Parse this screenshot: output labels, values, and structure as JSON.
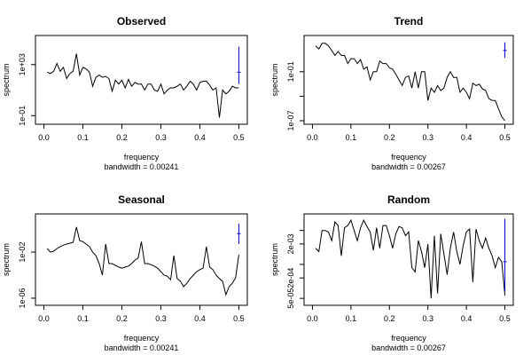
{
  "figure": {
    "background": "#ffffff"
  },
  "colors": {
    "line": "#000000",
    "ci_bar": "#0000cc",
    "axis": "#000000"
  },
  "chart_data": [
    {
      "type": "line",
      "title": "Observed",
      "xlabel": "frequency",
      "sublabel": "bandwidth = 0.00241",
      "ylabel": "spectrum",
      "log_y": true,
      "xlim": [
        0,
        0.5
      ],
      "ylim": [
        0.04,
        100000
      ],
      "x_ticks": [
        0.0,
        0.1,
        0.2,
        0.3,
        0.4,
        0.5
      ],
      "x_tick_labels": [
        "0.0",
        "0.1",
        "0.2",
        "0.3",
        "0.4",
        "0.5"
      ],
      "y_ticks": [
        0.1,
        1000
      ],
      "y_tick_labels": [
        "1e-01",
        "1e+03"
      ],
      "ci": {
        "x": 0.5,
        "center": 250,
        "low": 30,
        "high": 25000
      },
      "series": [
        {
          "x": [
            0.0083,
            0.0167,
            0.025,
            0.0333,
            0.0417,
            0.05,
            0.0583,
            0.0667,
            0.075,
            0.0833,
            0.0917,
            0.1,
            0.1083,
            0.1167,
            0.125,
            0.1333,
            0.1417,
            0.15,
            0.1583,
            0.1667,
            0.175,
            0.1833,
            0.1917,
            0.2,
            0.2083,
            0.2167,
            0.225,
            0.2333,
            0.2417,
            0.25,
            0.2583,
            0.2667,
            0.275,
            0.2833,
            0.2917,
            0.3,
            0.3083,
            0.3167,
            0.325,
            0.3333,
            0.3417,
            0.35,
            0.3583,
            0.3667,
            0.375,
            0.3833,
            0.3917,
            0.4,
            0.4083,
            0.4167,
            0.425,
            0.4333,
            0.4417,
            0.45,
            0.4583,
            0.4667,
            0.475,
            0.4833,
            0.4917,
            0.5
          ],
          "y": [
            250,
            200,
            300,
            1200,
            300,
            600,
            80,
            200,
            300,
            7000,
            150,
            600,
            450,
            250,
            20,
            100,
            150,
            100,
            120,
            80,
            8,
            60,
            30,
            60,
            15,
            70,
            20,
            40,
            30,
            30,
            10,
            30,
            30,
            10,
            8,
            30,
            5,
            10,
            15,
            15,
            20,
            30,
            10,
            20,
            50,
            30,
            10,
            40,
            50,
            50,
            25,
            10,
            15,
            0.07,
            10,
            5,
            8,
            20,
            15,
            15
          ]
        }
      ]
    },
    {
      "type": "line",
      "title": "Trend",
      "xlabel": "frequency",
      "sublabel": "bandwidth = 0.00267",
      "ylabel": "spectrum",
      "log_y": true,
      "xlim": [
        0,
        0.5
      ],
      "ylim": [
        1e-07,
        1000
      ],
      "x_ticks": [
        0.0,
        0.1,
        0.2,
        0.3,
        0.4,
        0.5
      ],
      "x_tick_labels": [
        "0.0",
        "0.1",
        "0.2",
        "0.3",
        "0.4",
        "0.5"
      ],
      "y_ticks": [
        1e-07,
        0.0001,
        0.1
      ],
      "y_tick_labels": [
        "1e-07",
        "",
        "1e-01"
      ],
      "ci": {
        "x": 0.5,
        "center": 40,
        "low": 5,
        "high": 400
      },
      "series": [
        {
          "x": [
            0.0083,
            0.0167,
            0.025,
            0.0333,
            0.0417,
            0.05,
            0.0583,
            0.0667,
            0.075,
            0.0833,
            0.0917,
            0.1,
            0.1083,
            0.1167,
            0.125,
            0.1333,
            0.1417,
            0.15,
            0.1583,
            0.1667,
            0.175,
            0.1833,
            0.1917,
            0.2,
            0.2083,
            0.2167,
            0.225,
            0.2333,
            0.2417,
            0.25,
            0.2583,
            0.2667,
            0.275,
            0.2833,
            0.2917,
            0.3,
            0.3083,
            0.3167,
            0.325,
            0.3333,
            0.3417,
            0.35,
            0.3583,
            0.3667,
            0.375,
            0.3833,
            0.3917,
            0.4,
            0.4083,
            0.4167,
            0.425,
            0.4333,
            0.4417,
            0.45,
            0.4583,
            0.4667,
            0.475,
            0.4833,
            0.4917,
            0.5
          ],
          "y": [
            150,
            60,
            300,
            300,
            150,
            40,
            10,
            30,
            10,
            10,
            1,
            4,
            4,
            1,
            3,
            0.2,
            0.4,
            0.01,
            0.1,
            0.1,
            2,
            1,
            1,
            0.3,
            0.2,
            0.05,
            0.01,
            0.002,
            0.02,
            0.03,
            0.001,
            0.1,
            0.001,
            0.1,
            0.1,
            3e-05,
            0.001,
            0.0003,
            0.002,
            0.0005,
            0.001,
            0.02,
            0.1,
            0.02,
            0.02,
            0.0003,
            0.001,
            0.0003,
            5e-05,
            0.004,
            0.002,
            0.003,
            0.0008,
            0.0005,
            5e-05,
            3e-05,
            3e-05,
            3e-06,
            3e-07,
            5e-08
          ]
        }
      ]
    },
    {
      "type": "line",
      "title": "Seasonal",
      "xlabel": "frequency",
      "sublabel": "bandwidth = 0.00241",
      "ylabel": "spectrum",
      "log_y": true,
      "xlim": [
        0,
        0.5
      ],
      "ylim": [
        5e-07,
        10
      ],
      "x_ticks": [
        0.0,
        0.1,
        0.2,
        0.3,
        0.4,
        0.5
      ],
      "x_tick_labels": [
        "0.0",
        "0.1",
        "0.2",
        "0.3",
        "0.4",
        "0.5"
      ],
      "y_ticks": [
        1e-06,
        0.01
      ],
      "y_tick_labels": [
        "1e-06",
        "1e-02"
      ],
      "ci": {
        "x": 0.5,
        "center": 0.4,
        "low": 0.05,
        "high": 3
      },
      "series": [
        {
          "x": [
            0.0083,
            0.0167,
            0.025,
            0.0333,
            0.0417,
            0.05,
            0.0583,
            0.0667,
            0.075,
            0.0833,
            0.0917,
            0.1,
            0.1083,
            0.1167,
            0.125,
            0.1333,
            0.1417,
            0.15,
            0.1583,
            0.1667,
            0.175,
            0.1833,
            0.1917,
            0.2,
            0.2083,
            0.2167,
            0.225,
            0.2333,
            0.2417,
            0.25,
            0.2583,
            0.2667,
            0.275,
            0.2833,
            0.2917,
            0.3,
            0.3083,
            0.3167,
            0.325,
            0.3333,
            0.3417,
            0.35,
            0.3583,
            0.3667,
            0.375,
            0.3833,
            0.3917,
            0.4,
            0.4083,
            0.4167,
            0.425,
            0.4333,
            0.4417,
            0.45,
            0.4583,
            0.4667,
            0.475,
            0.4833,
            0.4917,
            0.5
          ],
          "y": [
            0.02,
            0.01,
            0.012,
            0.02,
            0.03,
            0.04,
            0.05,
            0.06,
            0.07,
            1.5,
            0.1,
            0.08,
            0.05,
            0.03,
            0.01,
            0.005,
            0.001,
            0.0001,
            0.05,
            0.001,
            0.001,
            0.0007,
            0.0005,
            0.0004,
            0.0005,
            0.0006,
            0.001,
            0.002,
            0.003,
            0.08,
            0.001,
            0.001,
            0.0008,
            0.0006,
            0.0004,
            0.0002,
            0.0001,
            8e-05,
            4e-05,
            0.005,
            5e-05,
            3e-05,
            1e-05,
            2e-05,
            5e-05,
            0.0001,
            0.0002,
            0.0003,
            0.0004,
            0.03,
            0.0005,
            0.0003,
            0.0001,
            5e-05,
            3e-05,
            2e-06,
            1e-05,
            2e-05,
            6e-05,
            0.006
          ]
        }
      ]
    },
    {
      "type": "line",
      "title": "Random",
      "xlabel": "frequency",
      "sublabel": "bandwidth = 0.00267",
      "ylabel": "spectrum",
      "log_y": true,
      "xlim": [
        0,
        0.5
      ],
      "ylim": [
        4e-05,
        0.012
      ],
      "x_ticks": [
        0.0,
        0.1,
        0.2,
        0.3,
        0.4,
        0.5
      ],
      "x_tick_labels": [
        "0.0",
        "0.1",
        "0.2",
        "0.3",
        "0.4",
        "0.5"
      ],
      "y_ticks": [
        5e-05,
        0.0002,
        0.0005,
        0.002,
        0.005
      ],
      "y_tick_labels": [
        "5e-05",
        "2e-04",
        "",
        "2e-03",
        ""
      ],
      "ci": {
        "x": 0.5,
        "center": 0.0006,
        "low": 8e-05,
        "high": 0.011
      },
      "series": [
        {
          "x": [
            0.0083,
            0.0167,
            0.025,
            0.0333,
            0.0417,
            0.05,
            0.0583,
            0.0667,
            0.075,
            0.0833,
            0.0917,
            0.1,
            0.1083,
            0.1167,
            0.125,
            0.1333,
            0.1417,
            0.15,
            0.1583,
            0.1667,
            0.175,
            0.1833,
            0.1917,
            0.2,
            0.2083,
            0.2167,
            0.225,
            0.2333,
            0.2417,
            0.25,
            0.2583,
            0.2667,
            0.275,
            0.2833,
            0.2917,
            0.3,
            0.3083,
            0.3167,
            0.325,
            0.3333,
            0.3417,
            0.35,
            0.3583,
            0.3667,
            0.375,
            0.3833,
            0.3917,
            0.4,
            0.4083,
            0.4167,
            0.425,
            0.4333,
            0.4417,
            0.45,
            0.4583,
            0.4667,
            0.475,
            0.4833,
            0.4917,
            0.5
          ],
          "y": [
            0.0015,
            0.0012,
            0.005,
            0.005,
            0.0045,
            0.0025,
            0.009,
            0.007,
            0.0009,
            0.006,
            0.007,
            0.01,
            0.005,
            0.0025,
            0.006,
            0.01,
            0.0065,
            0.0045,
            0.0013,
            0.006,
            0.0015,
            0.007,
            0.007,
            0.0035,
            0.0015,
            0.004,
            0.0065,
            0.006,
            0.0035,
            0.0045,
            0.0004,
            0.0003,
            0.0025,
            0.0012,
            0.0004,
            0.002,
            5e-05,
            0.0035,
            7e-05,
            0.004,
            0.001,
            0.00025,
            0.0015,
            0.0045,
            0.0012,
            0.0005,
            0.0018,
            0.0045,
            0.0055,
            0.00015,
            0.0055,
            0.0025,
            0.0015,
            0.003,
            0.0015,
            0.0009,
            0.0004,
            0.0008,
            0.0006,
            6e-05
          ]
        }
      ]
    }
  ]
}
